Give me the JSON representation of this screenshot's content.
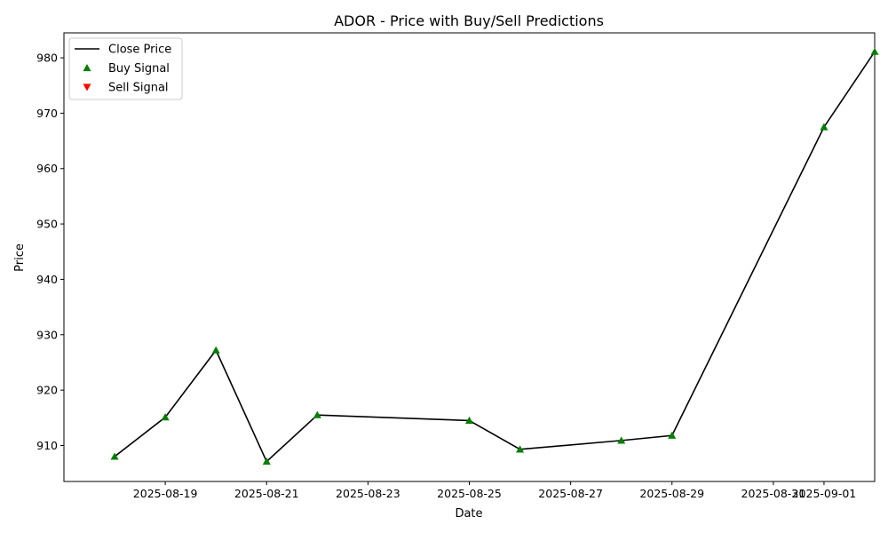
{
  "chart_data": {
    "type": "line",
    "title": "ADOR - Price with Buy/Sell Predictions",
    "xlabel": "Date",
    "ylabel": "Price",
    "x_tick_labels": [
      "2025-08-19",
      "2025-08-21",
      "2025-08-23",
      "2025-08-25",
      "2025-08-27",
      "2025-08-29",
      "2025-08-31",
      "2025-09-01"
    ],
    "y_ticks": [
      910,
      920,
      930,
      940,
      950,
      960,
      970,
      980
    ],
    "xlim": [
      "2025-08-17",
      "2025-09-02"
    ],
    "ylim": [
      903.5,
      984.5
    ],
    "series": [
      {
        "name": "Close Price",
        "color": "#000000",
        "x": [
          "2025-08-18",
          "2025-08-19",
          "2025-08-20",
          "2025-08-21",
          "2025-08-22",
          "2025-08-25",
          "2025-08-26",
          "2025-08-28",
          "2025-08-29",
          "2025-09-01",
          "2025-09-02"
        ],
        "y": [
          908.0,
          915.1,
          927.2,
          907.1,
          915.5,
          914.5,
          909.3,
          910.9,
          911.8,
          967.5,
          981.1
        ]
      },
      {
        "name": "Buy Signal",
        "color": "#008000",
        "marker": "triangle-up",
        "x": [
          "2025-08-18",
          "2025-08-19",
          "2025-08-20",
          "2025-08-21",
          "2025-08-22",
          "2025-08-25",
          "2025-08-26",
          "2025-08-28",
          "2025-08-29",
          "2025-09-01",
          "2025-09-02"
        ],
        "y": [
          908.0,
          915.1,
          927.2,
          907.1,
          915.5,
          914.5,
          909.3,
          910.9,
          911.8,
          967.5,
          981.1
        ]
      },
      {
        "name": "Sell Signal",
        "color": "#ff0000",
        "marker": "triangle-down",
        "x": [],
        "y": []
      }
    ],
    "legend": {
      "position": "top-left",
      "entries": [
        "Close Price",
        "Buy Signal",
        "Sell Signal"
      ]
    },
    "grid": false
  }
}
